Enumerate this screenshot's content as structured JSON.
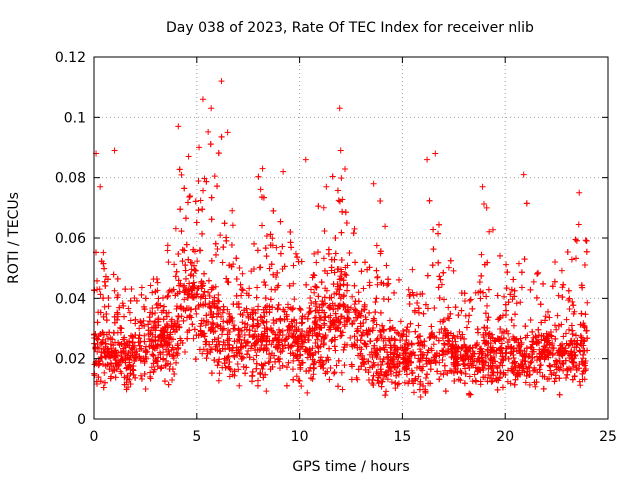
{
  "chart_data": {
    "type": "scatter",
    "title": "Day 038 of 2023, Rate Of TEC Index for receiver nlib",
    "xlabel": "GPS time / hours",
    "ylabel": "ROTI / TECUs",
    "xlim": [
      0,
      25
    ],
    "ylim": [
      0,
      0.12
    ],
    "xticks": [
      0,
      5,
      10,
      15,
      20,
      25
    ],
    "xtick_labels": [
      "0",
      "5",
      "10",
      "15",
      "20",
      "25"
    ],
    "yticks": [
      0,
      0.02,
      0.04,
      0.06,
      0.08,
      0.1,
      0.12
    ],
    "ytick_labels": [
      "0",
      "0.02",
      "0.04",
      "0.06",
      "0.08",
      "0.1",
      "0.12"
    ],
    "grid": true,
    "marker": "+",
    "color": "#ff0000",
    "envelope": {
      "x": [
        0,
        0.5,
        1,
        1.5,
        2,
        2.5,
        3,
        3.5,
        4,
        4.25,
        4.5,
        5,
        5.5,
        6,
        6.25,
        6.5,
        7,
        7.5,
        8,
        8.5,
        9,
        9.5,
        10,
        10.5,
        11,
        11.5,
        12,
        12.5,
        13,
        13.5,
        14,
        14.5,
        15,
        15.5,
        16,
        16.5,
        17,
        17.5,
        18,
        18.5,
        19,
        19.5,
        20,
        20.5,
        21,
        21.5,
        22,
        22.5,
        23,
        23.5,
        24
      ],
      "low": [
        0.008,
        0.01,
        0.008,
        0.008,
        0.008,
        0.008,
        0.009,
        0.01,
        0.012,
        0.016,
        0.02,
        0.016,
        0.014,
        0.012,
        0.012,
        0.01,
        0.01,
        0.008,
        0.01,
        0.009,
        0.009,
        0.009,
        0.008,
        0.008,
        0.008,
        0.008,
        0.008,
        0.008,
        0.007,
        0.007,
        0.006,
        0.007,
        0.008,
        0.008,
        0.007,
        0.008,
        0.009,
        0.01,
        0.008,
        0.008,
        0.008,
        0.008,
        0.009,
        0.01,
        0.009,
        0.008,
        0.009,
        0.008,
        0.008,
        0.008,
        0.009
      ],
      "high": [
        0.08,
        0.06,
        0.05,
        0.045,
        0.045,
        0.05,
        0.055,
        0.055,
        0.07,
        0.097,
        0.095,
        0.088,
        0.106,
        0.112,
        0.1,
        0.08,
        0.06,
        0.055,
        0.082,
        0.075,
        0.07,
        0.072,
        0.055,
        0.07,
        0.075,
        0.08,
        0.103,
        0.08,
        0.06,
        0.06,
        0.078,
        0.05,
        0.045,
        0.05,
        0.05,
        0.088,
        0.06,
        0.05,
        0.05,
        0.05,
        0.077,
        0.06,
        0.06,
        0.055,
        0.081,
        0.055,
        0.05,
        0.055,
        0.06,
        0.075,
        0.06
      ],
      "typical": [
        0.022,
        0.022,
        0.02,
        0.02,
        0.02,
        0.022,
        0.024,
        0.025,
        0.028,
        0.035,
        0.04,
        0.038,
        0.034,
        0.03,
        0.028,
        0.026,
        0.025,
        0.024,
        0.026,
        0.026,
        0.025,
        0.025,
        0.024,
        0.026,
        0.028,
        0.03,
        0.032,
        0.03,
        0.026,
        0.022,
        0.02,
        0.02,
        0.019,
        0.019,
        0.02,
        0.024,
        0.022,
        0.02,
        0.019,
        0.019,
        0.021,
        0.02,
        0.02,
        0.02,
        0.02,
        0.02,
        0.02,
        0.02,
        0.02,
        0.021,
        0.022
      ]
    },
    "spikes": [
      {
        "x": 0.1,
        "y": 0.088
      },
      {
        "x": 0.3,
        "y": 0.077
      },
      {
        "x": 1.0,
        "y": 0.089
      },
      {
        "x": 4.1,
        "y": 0.097
      },
      {
        "x": 4.6,
        "y": 0.087
      },
      {
        "x": 5.3,
        "y": 0.106
      },
      {
        "x": 5.7,
        "y": 0.103
      },
      {
        "x": 6.2,
        "y": 0.112
      },
      {
        "x": 6.5,
        "y": 0.095
      },
      {
        "x": 8.2,
        "y": 0.083
      },
      {
        "x": 9.2,
        "y": 0.082
      },
      {
        "x": 10.3,
        "y": 0.086
      },
      {
        "x": 11.3,
        "y": 0.077
      },
      {
        "x": 11.95,
        "y": 0.103
      },
      {
        "x": 12.0,
        "y": 0.089
      },
      {
        "x": 13.6,
        "y": 0.078
      },
      {
        "x": 16.2,
        "y": 0.086
      },
      {
        "x": 16.6,
        "y": 0.088
      },
      {
        "x": 18.9,
        "y": 0.077
      },
      {
        "x": 19.1,
        "y": 0.07
      },
      {
        "x": 20.9,
        "y": 0.081
      },
      {
        "x": 23.6,
        "y": 0.075
      }
    ]
  }
}
